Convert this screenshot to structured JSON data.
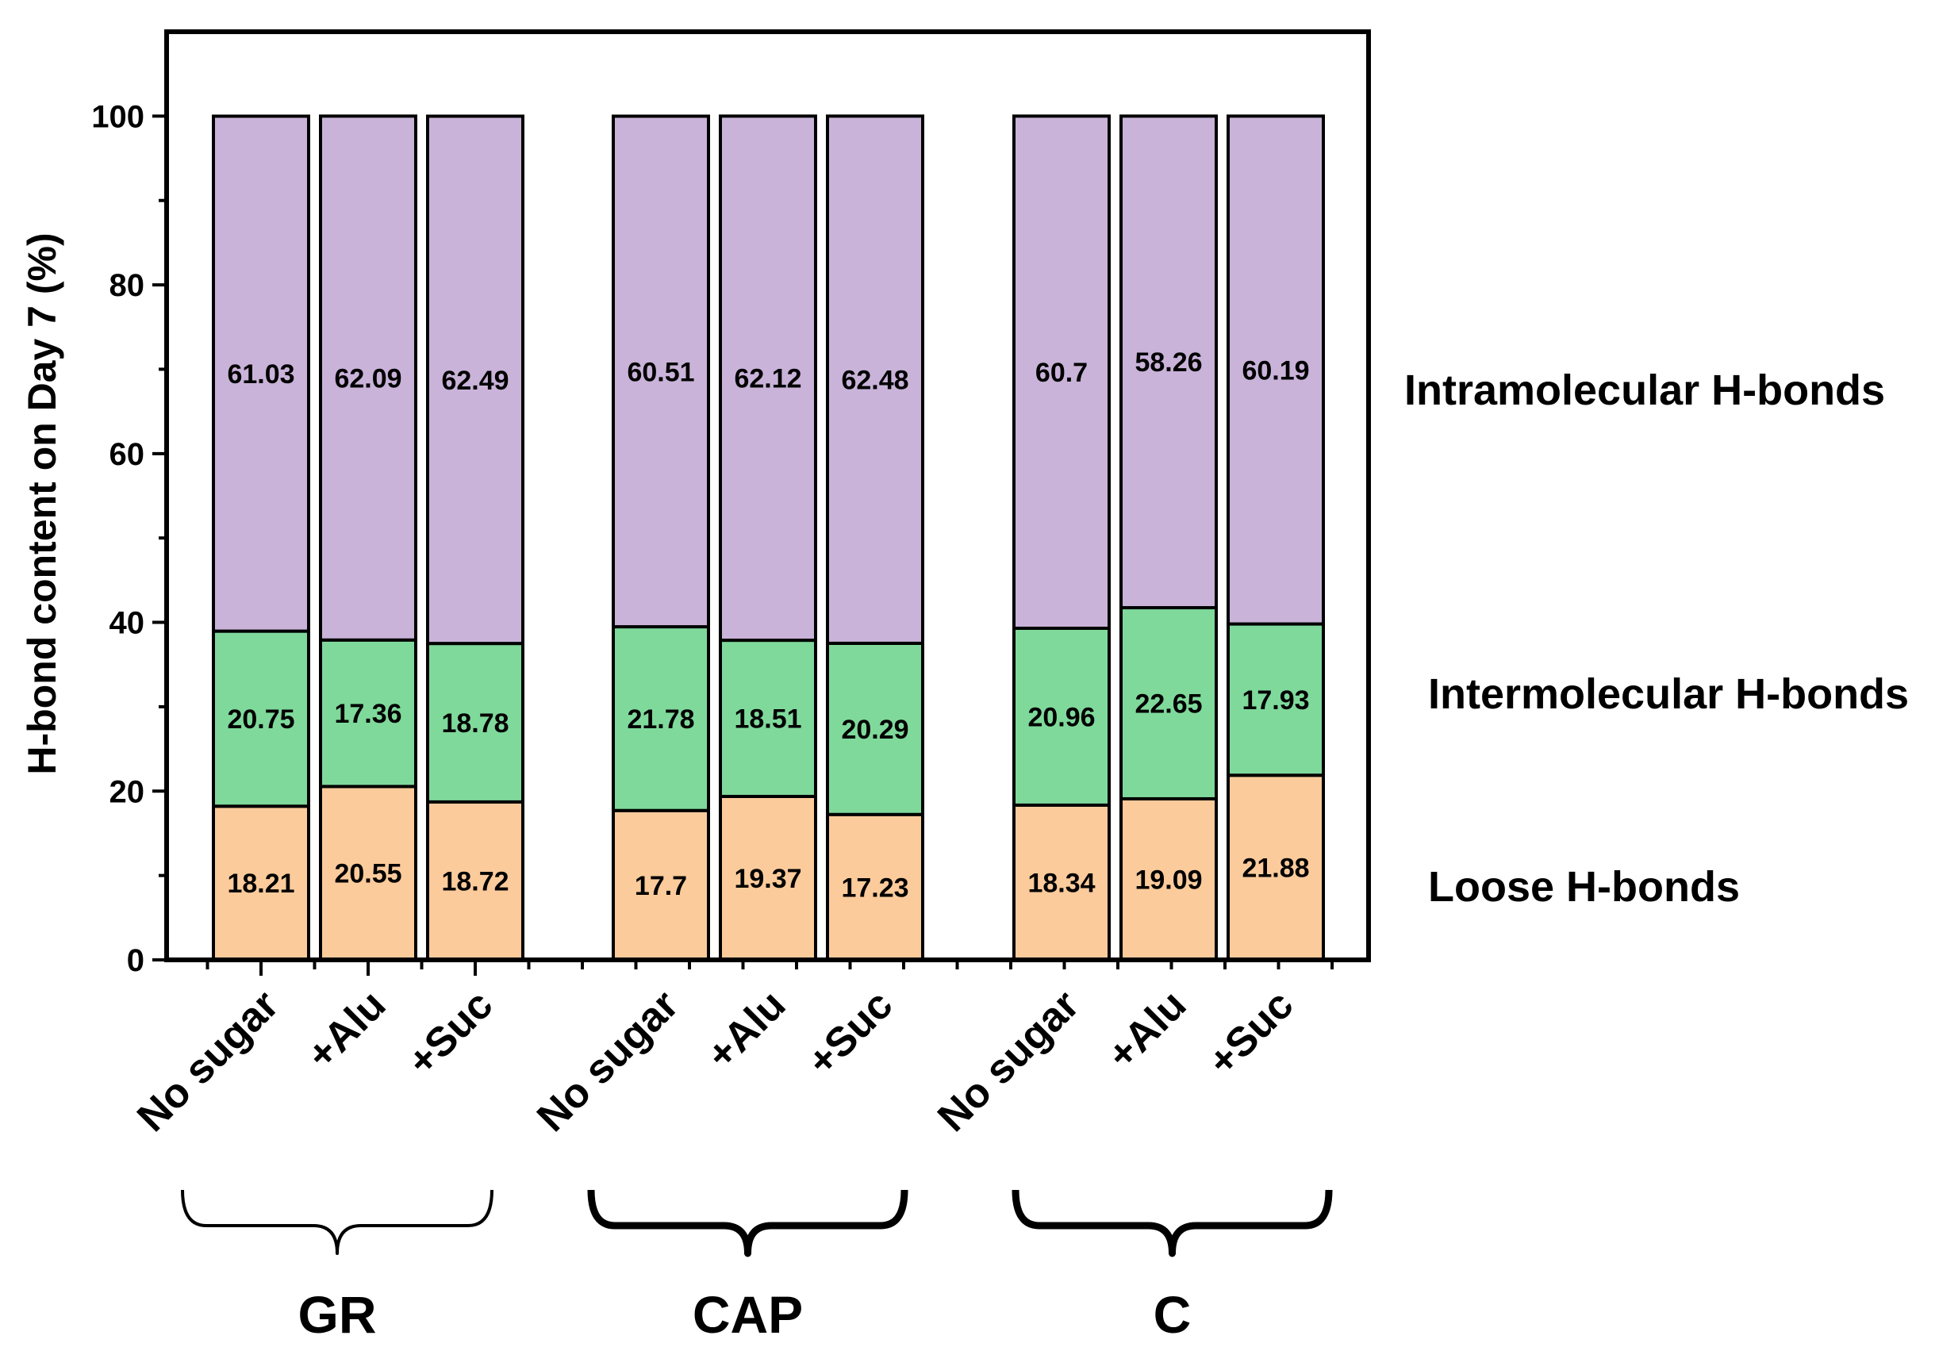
{
  "chart_data": {
    "type": "bar",
    "stacked": true,
    "ylabel": "H-bond content on Day 7 (%)",
    "ylim": [
      0,
      110
    ],
    "yticks": [
      0,
      20,
      40,
      60,
      80,
      100
    ],
    "categories": [
      "No sugar",
      "+Alu",
      "+Suc",
      "No sugar",
      "+Alu",
      "+Suc",
      "No sugar",
      "+Alu",
      "+Suc"
    ],
    "groups": [
      {
        "name": "GR",
        "indices": [
          0,
          1,
          2
        ]
      },
      {
        "name": "CAP",
        "indices": [
          3,
          4,
          5
        ]
      },
      {
        "name": "C",
        "indices": [
          6,
          7,
          8
        ]
      }
    ],
    "series": [
      {
        "name": "Loose H-bonds",
        "color": "#fccb9b",
        "values": [
          18.21,
          20.55,
          18.72,
          17.7,
          19.37,
          17.23,
          18.34,
          19.09,
          21.88
        ],
        "labels": [
          "18.21",
          "20.55",
          "18.72",
          "17.7",
          "19.37",
          "17.23",
          "18.34",
          "19.09",
          "21.88"
        ]
      },
      {
        "name": "Intermolecular H-bonds",
        "color": "#7fd99b",
        "values": [
          20.75,
          17.36,
          18.78,
          21.78,
          18.51,
          20.29,
          20.96,
          22.65,
          17.93
        ],
        "labels": [
          "20.75",
          "17.36",
          "18.78",
          "21.78",
          "18.51",
          "20.29",
          "20.96",
          "22.65",
          "17.93"
        ]
      },
      {
        "name": "Intramolecular H-bonds",
        "color": "#c9b3d9",
        "values": [
          61.03,
          62.09,
          62.49,
          60.51,
          62.12,
          62.48,
          60.7,
          58.26,
          60.19
        ],
        "labels": [
          "61.03",
          "62.09",
          "62.49",
          "60.51",
          "62.12",
          "62.48",
          "60.7",
          "58.26",
          "60.19"
        ]
      }
    ]
  }
}
